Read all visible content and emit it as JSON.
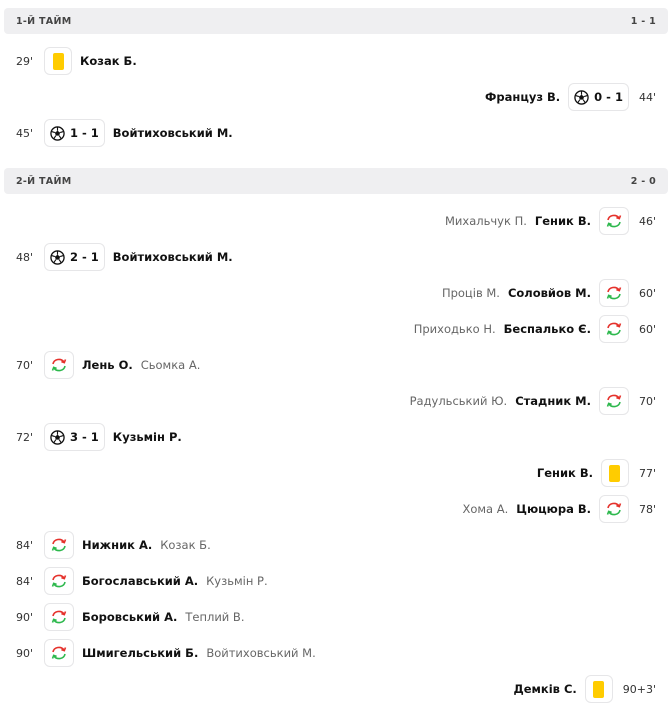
{
  "halves": [
    {
      "title": "1-Й ТАЙМ",
      "score": "1 - 1",
      "events": [
        {
          "side": "l",
          "minute": "29'",
          "type": "yellow-card",
          "player": "Козак Б."
        },
        {
          "side": "r",
          "minute": "44'",
          "type": "goal",
          "score": "0 - 1",
          "player": "Француз В."
        },
        {
          "side": "l",
          "minute": "45'",
          "type": "goal",
          "score": "1 - 1",
          "player": "Войтиховський М."
        }
      ]
    },
    {
      "title": "2-Й ТАЙМ",
      "score": "2 - 0",
      "events": [
        {
          "side": "r",
          "minute": "46'",
          "type": "substitution",
          "player": "Геник В.",
          "sub": "Михальчук П."
        },
        {
          "side": "l",
          "minute": "48'",
          "type": "goal",
          "score": "2 - 1",
          "player": "Войтиховський М."
        },
        {
          "side": "r",
          "minute": "60'",
          "type": "substitution",
          "player": "Соловйов М.",
          "sub": "Проців М."
        },
        {
          "side": "r",
          "minute": "60'",
          "type": "substitution",
          "player": "Беспалько Є.",
          "sub": "Приходько Н."
        },
        {
          "side": "l",
          "minute": "70'",
          "type": "substitution",
          "player": "Лень О.",
          "sub": "Сьомка А."
        },
        {
          "side": "r",
          "minute": "70'",
          "type": "substitution",
          "player": "Стадник М.",
          "sub": "Радульський Ю."
        },
        {
          "side": "l",
          "minute": "72'",
          "type": "goal",
          "score": "3 - 1",
          "player": "Кузьмін Р."
        },
        {
          "side": "r",
          "minute": "77'",
          "type": "yellow-card",
          "player": "Геник В."
        },
        {
          "side": "r",
          "minute": "78'",
          "type": "substitution",
          "player": "Цюцюра В.",
          "sub": "Хома А."
        },
        {
          "side": "l",
          "minute": "84'",
          "type": "substitution",
          "player": "Нижник А.",
          "sub": "Козак Б."
        },
        {
          "side": "l",
          "minute": "84'",
          "type": "substitution",
          "player": "Богославський А.",
          "sub": "Кузьмін Р."
        },
        {
          "side": "l",
          "minute": "90'",
          "type": "substitution",
          "player": "Боровський А.",
          "sub": "Теплий В."
        },
        {
          "side": "l",
          "minute": "90'",
          "type": "substitution",
          "player": "Шмигельський Б.",
          "sub": "Войтиховський М."
        },
        {
          "side": "r",
          "minute": "90+3'",
          "type": "yellow-card",
          "player": "Демків С."
        }
      ]
    }
  ],
  "colors": {
    "yellow_card": "#ffcc00",
    "sub_in": "#2db84d",
    "sub_out": "#e5312b",
    "header_bg": "#efeff1"
  }
}
